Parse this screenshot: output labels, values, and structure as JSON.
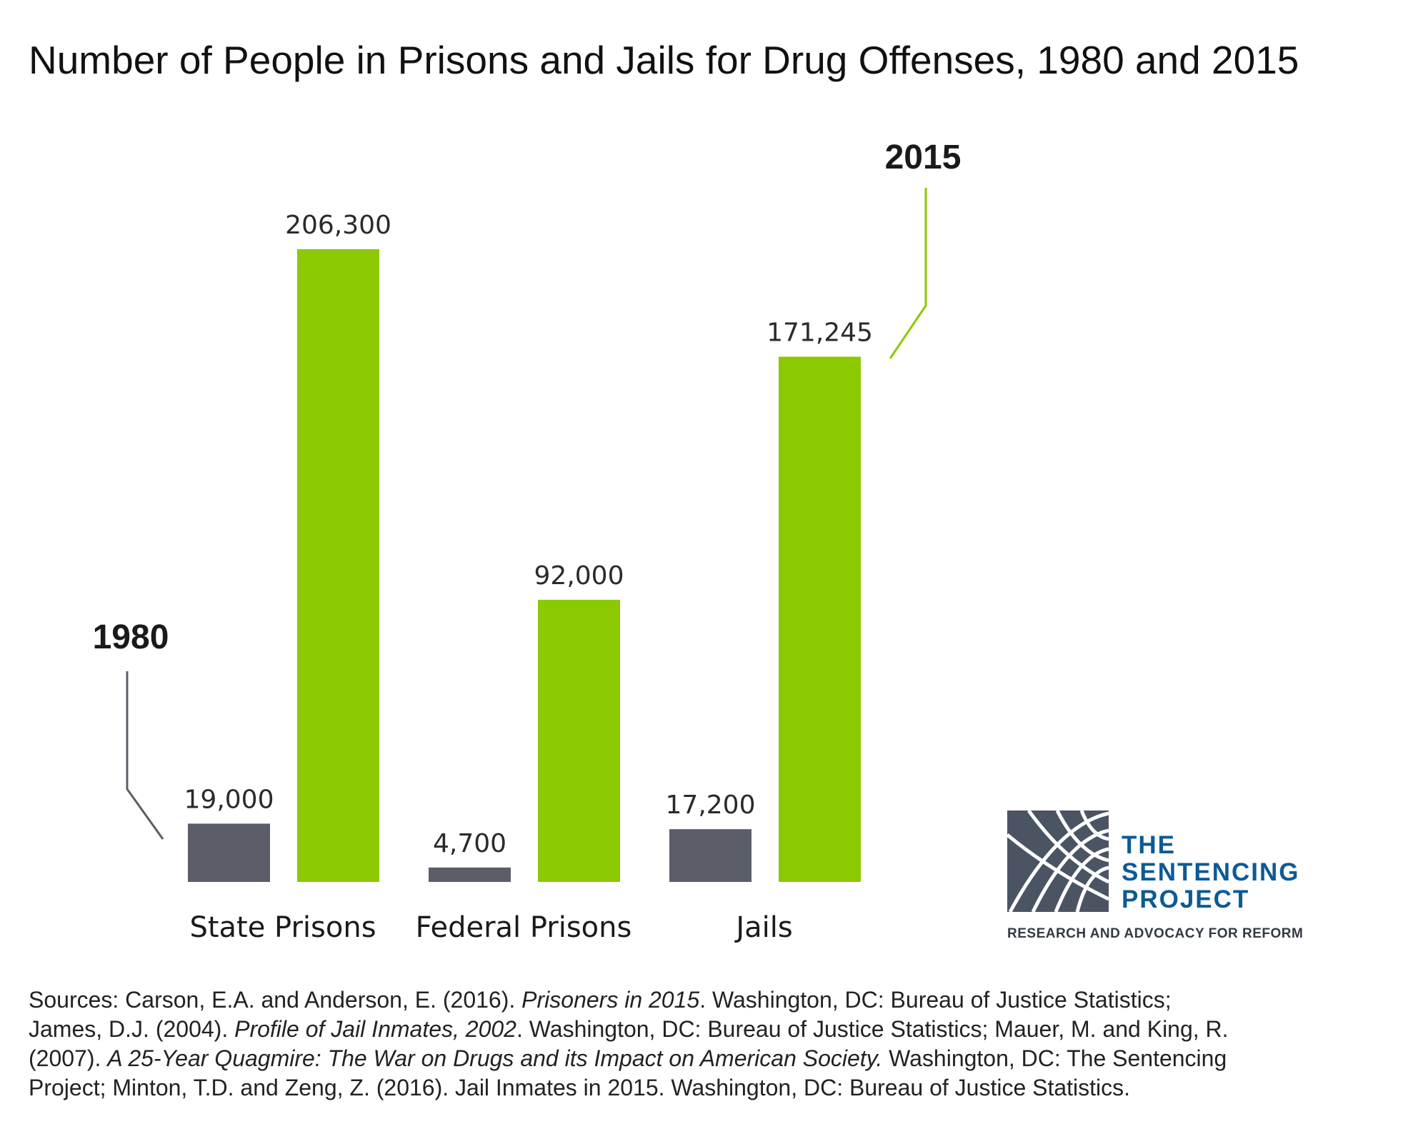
{
  "chart_data": {
    "type": "bar",
    "title": "Number of People in Prisons and Jails for Drug Offenses, 1980 and 2015",
    "categories": [
      "State Prisons",
      "Federal Prisons",
      "Jails"
    ],
    "series": [
      {
        "name": "1980",
        "values": [
          19000,
          4700,
          17200
        ],
        "labels": [
          "19,000",
          "4,700",
          "17,200"
        ],
        "color": "#5b5e69"
      },
      {
        "name": "2015",
        "values": [
          206300,
          92000,
          171245
        ],
        "labels": [
          "206,300",
          "92,000",
          "171,245"
        ],
        "color": "#8bc900"
      }
    ],
    "ylim": [
      0,
      206300
    ],
    "grid": false,
    "legend": "callouts"
  },
  "sources": {
    "line1_a": "Sources: Carson, E.A. and Anderson, E. (2016). ",
    "line1_i": "Prisoners in 2015",
    "line1_b": ". Washington, DC: Bureau of Justice Statistics;",
    "line2_a": "James, D.J. (2004). ",
    "line2_i": "Profile of Jail Inmates, 2002",
    "line2_b": ". Washington, DC: Bureau of Justice Statistics; Mauer, M. and King, R.",
    "line3_a": "(2007). ",
    "line3_i": "A 25-Year Quagmire: The War on Drugs and its Impact on American Society.",
    "line3_b": " Washington, DC: The Sentencing",
    "line4": "Project; Minton, T.D. and Zeng, Z. (2016). Jail Inmates in 2015. Washington, DC: Bureau of Justice Statistics."
  },
  "logo": {
    "line1": "THE",
    "line2": "SENTENCING",
    "line3": "PROJECT",
    "tagline": "RESEARCH AND ADVOCACY FOR REFORM",
    "colors": {
      "text": "#0d5a95",
      "mark": "#4a5462"
    }
  }
}
